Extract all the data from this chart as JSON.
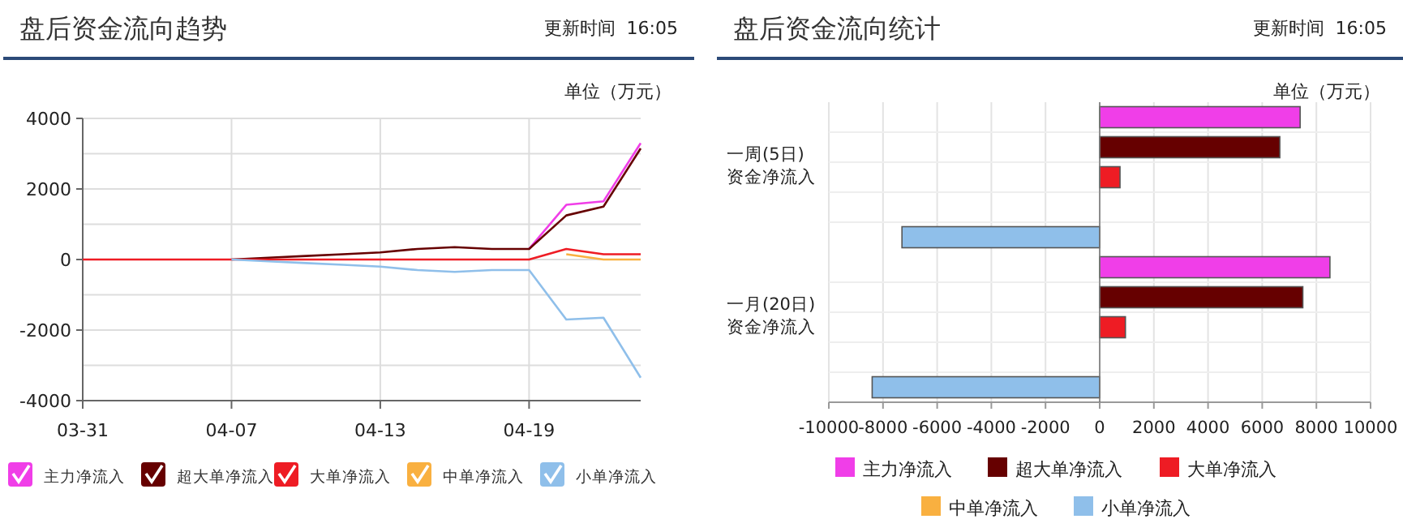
{
  "chart_data": [
    {
      "type": "line",
      "title": "盘后资金流向趋势",
      "annotations": [
        "更新时间  16:05",
        "单位（万元）"
      ],
      "categories": [
        "03-31",
        null,
        null,
        null,
        "04-07",
        null,
        null,
        null,
        "04-13",
        null,
        null,
        null,
        "04-19",
        null,
        null,
        null
      ],
      "series": [
        {
          "name": "主力净流入",
          "color": "#f03ee8",
          "values": [
            null,
            null,
            null,
            null,
            null,
            null,
            null,
            null,
            null,
            null,
            null,
            null,
            300,
            1550,
            1650,
            3300
          ]
        },
        {
          "name": "超大单净流入",
          "color": "#660000",
          "values": [
            null,
            null,
            null,
            null,
            0,
            50,
            100,
            150,
            200,
            300,
            350,
            300,
            300,
            1250,
            1500,
            3150
          ]
        },
        {
          "name": "大单净流入",
          "color": "#ee1c24",
          "values": [
            0,
            0,
            0,
            0,
            0,
            0,
            0,
            0,
            0,
            0,
            0,
            0,
            0,
            300,
            150,
            150
          ]
        },
        {
          "name": "中单净流入",
          "color": "#f9b040",
          "values": [
            null,
            null,
            null,
            null,
            null,
            null,
            null,
            null,
            null,
            null,
            null,
            null,
            null,
            150,
            0,
            0
          ]
        },
        {
          "name": "小单净流入",
          "color": "#8fbfea",
          "values": [
            null,
            null,
            null,
            null,
            0,
            -50,
            -100,
            -150,
            -200,
            -300,
            -350,
            -300,
            -300,
            -1700,
            -1650,
            -3350
          ]
        }
      ],
      "ylim": [
        -4000,
        4000
      ],
      "yticks": [
        -4000,
        {
          "value": -3000,
          "label": null
        },
        -2000,
        {
          "value": -1000,
          "label": null
        },
        0,
        {
          "value": 1000,
          "label": null
        },
        2000,
        {
          "value": 3000,
          "label": null
        },
        4000
      ],
      "grid": true,
      "legend": "bottom",
      "marker": "none",
      "line_style": "solid"
    },
    {
      "type": "bar",
      "orientation": "horizontal",
      "title": "盘后资金流向统计",
      "annotations": [
        "更新时间  16:05",
        "单位（万元）"
      ],
      "categories": [
        "一周(5日)\n资金净流入",
        "一月(20日)\n资金净流入"
      ],
      "series": [
        {
          "name": "主力净流入",
          "color": "#f03ee8",
          "values": [
            7400,
            8500
          ]
        },
        {
          "name": "超大单净流入",
          "color": "#660000",
          "values": [
            6650,
            7500
          ]
        },
        {
          "name": "大单净流入",
          "color": "#ee1c24",
          "values": [
            750,
            950
          ]
        },
        {
          "name": "中单净流入",
          "color": "#f9b040",
          "values": [
            0,
            0
          ]
        },
        {
          "name": "小单净流入",
          "color": "#8fbfea",
          "values": [
            -7300,
            -8400
          ]
        }
      ],
      "xlim": [
        -10000,
        10000
      ],
      "xticks": [
        -10000,
        -8000,
        -6000,
        -4000,
        -2000,
        0,
        2000,
        4000,
        6000,
        8000,
        10000
      ],
      "grid": true,
      "legend": "bottom"
    }
  ]
}
